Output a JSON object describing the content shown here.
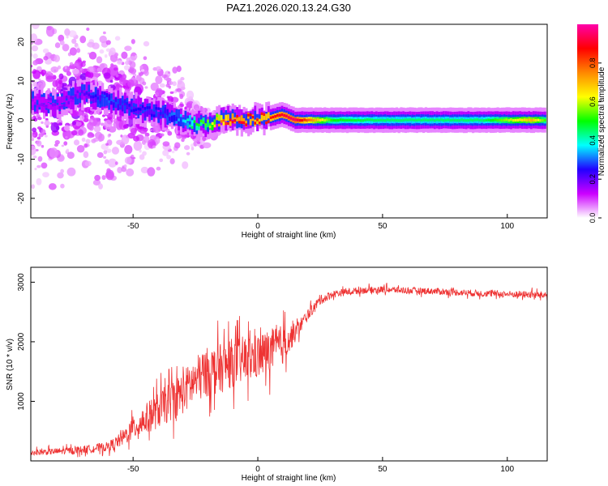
{
  "title": "PAZ1.2026.020.13.24.G30",
  "chart_data": [
    {
      "type": "heatmap",
      "xlabel": "Height of straight line (km)",
      "ylabel": "Frequency (Hz)",
      "xlim": [
        -91,
        116
      ],
      "ylim": [
        -25,
        24.5
      ],
      "xticks": [
        -50,
        0,
        50,
        100
      ],
      "yticks": [
        -20,
        -10,
        0,
        10,
        20
      ],
      "xtick_labels": [
        "-50",
        "0",
        "50",
        "100"
      ],
      "ytick_labels": [
        "-20",
        "-10",
        "0",
        "10",
        "20"
      ],
      "ridge": {
        "x": [
          -91,
          -80,
          -70,
          -60,
          -50,
          -40,
          -30,
          -25,
          -20,
          -15,
          -10,
          -5,
          0,
          5,
          10,
          15,
          30,
          50,
          70,
          90,
          110,
          116
        ],
        "freq": [
          5,
          4,
          7,
          5,
          3,
          2,
          0,
          -1,
          -1,
          0,
          0.5,
          0,
          0.5,
          0.5,
          1.5,
          0,
          0,
          0,
          0,
          0,
          0,
          0
        ],
        "amplitude": [
          0.15,
          0.18,
          0.2,
          0.3,
          0.25,
          0.25,
          0.35,
          0.5,
          0.55,
          0.75,
          0.9,
          0.9,
          0.85,
          0.85,
          0.9,
          0.95,
          0.5,
          0.45,
          0.45,
          0.45,
          0.7,
          0.5
        ]
      },
      "scatter_spread_hz": {
        "x": [
          -91,
          -60,
          -40,
          -25,
          -15
        ],
        "spread": [
          22,
          20,
          14,
          8,
          3
        ]
      },
      "colorbar": {
        "label": "Normalized spectral amplitude",
        "range": [
          0,
          1
        ],
        "ticks": [
          0.0,
          0.2,
          0.4,
          0.6,
          0.8
        ],
        "tick_labels": [
          "0.0",
          "0.2",
          "0.4",
          "0.6",
          "0.8"
        ],
        "colors": [
          "#ffffff",
          "#cc00ff",
          "#2200ff",
          "#00ffff",
          "#00ff00",
          "#ffff00",
          "#ff8800",
          "#ff0000",
          "#ff00aa"
        ]
      }
    },
    {
      "type": "line",
      "xlabel": "Height of straight line (km)",
      "ylabel": "SNR (10 * v/v)",
      "xlim": [
        -91,
        116
      ],
      "ylim": [
        0,
        3250
      ],
      "xticks": [
        -50,
        0,
        50,
        100
      ],
      "yticks": [
        1000,
        2000,
        3000
      ],
      "xtick_labels": [
        "-50",
        "0",
        "50",
        "100"
      ],
      "ytick_labels": [
        "1000",
        "2000",
        "3000"
      ],
      "color": "#ee3333",
      "envelope": {
        "x": [
          -91,
          -80,
          -70,
          -60,
          -55,
          -50,
          -45,
          -40,
          -35,
          -30,
          -25,
          -20,
          -15,
          -10,
          -5,
          0,
          5,
          10,
          15,
          20,
          25,
          30,
          40,
          50,
          60,
          70,
          80,
          90,
          100,
          110,
          116
        ],
        "mean": [
          140,
          160,
          190,
          240,
          350,
          550,
          700,
          850,
          1000,
          1150,
          1350,
          1500,
          1550,
          1650,
          1700,
          1750,
          1850,
          1950,
          2150,
          2450,
          2700,
          2800,
          2860,
          2880,
          2860,
          2850,
          2830,
          2810,
          2800,
          2790,
          2780
        ],
        "noise": [
          60,
          70,
          80,
          100,
          150,
          250,
          320,
          380,
          420,
          460,
          500,
          520,
          520,
          520,
          500,
          480,
          460,
          420,
          200,
          120,
          100,
          80,
          70,
          70,
          70,
          70,
          70,
          70,
          70,
          80,
          80
        ]
      }
    }
  ]
}
